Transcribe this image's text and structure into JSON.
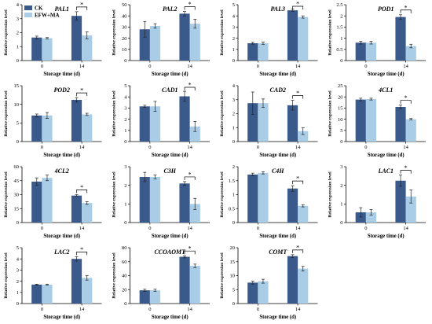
{
  "legend": [
    {
      "label": "CK",
      "color": "#3b5a8c"
    },
    {
      "label": "EFW+MA",
      "color": "#a9cde6"
    }
  ],
  "chart_data": [
    {
      "type": "bar",
      "title": "PAL1",
      "xlabel": "Storage time (d)",
      "ylabel": "Relative expression level",
      "categories": [
        "0",
        "14"
      ],
      "ylim": [
        0,
        4
      ],
      "yticks": [
        0,
        1,
        2,
        3,
        4
      ],
      "series": [
        {
          "name": "CK",
          "values": [
            1.65,
            3.2
          ],
          "errors": [
            0.1,
            0.3
          ]
        },
        {
          "name": "EFW+MA",
          "values": [
            1.6,
            1.8
          ],
          "errors": [
            0.05,
            0.25
          ]
        }
      ],
      "sig": "*"
    },
    {
      "type": "bar",
      "title": "PAL2",
      "xlabel": "Storage time (d)",
      "ylabel": "Relative expression level",
      "categories": [
        "0",
        "14"
      ],
      "ylim": [
        0,
        50
      ],
      "yticks": [
        0,
        10,
        20,
        30,
        40,
        50
      ],
      "series": [
        {
          "name": "CK",
          "values": [
            28,
            42
          ],
          "errors": [
            7,
            2
          ]
        },
        {
          "name": "EFW+MA",
          "values": [
            31,
            33
          ],
          "errors": [
            2,
            4
          ]
        }
      ],
      "sig": "*"
    },
    {
      "type": "bar",
      "title": "PAL3",
      "xlabel": "Storage time (d)",
      "ylabel": "Relative expression level",
      "categories": [
        "0",
        "14"
      ],
      "ylim": [
        0,
        5
      ],
      "yticks": [
        0,
        1,
        2,
        3,
        4,
        5
      ],
      "series": [
        {
          "name": "CK",
          "values": [
            1.55,
            4.5
          ],
          "errors": [
            0.08,
            0.1
          ]
        },
        {
          "name": "EFW+MA",
          "values": [
            1.55,
            3.9
          ],
          "errors": [
            0.1,
            0.1
          ]
        }
      ],
      "sig": "*"
    },
    {
      "type": "bar",
      "title": "POD1",
      "xlabel": "Storage time (d)",
      "ylabel": "Relative expression level",
      "categories": [
        "0",
        "14"
      ],
      "ylim": [
        0,
        2.5
      ],
      "yticks": [
        0,
        0.5,
        1.0,
        1.5,
        2.0,
        2.5
      ],
      "series": [
        {
          "name": "CK",
          "values": [
            0.8,
            1.95
          ],
          "errors": [
            0.06,
            0.1
          ]
        },
        {
          "name": "EFW+MA",
          "values": [
            0.8,
            0.65
          ],
          "errors": [
            0.06,
            0.08
          ]
        }
      ],
      "sig": "*"
    },
    {
      "type": "bar",
      "title": "POD2",
      "xlabel": "Storage time (d)",
      "ylabel": "Relative expression level",
      "categories": [
        "0",
        "14"
      ],
      "ylim": [
        0,
        15
      ],
      "yticks": [
        0,
        5,
        10,
        15
      ],
      "series": [
        {
          "name": "CK",
          "values": [
            7,
            11.2
          ],
          "errors": [
            0.4,
            0.6
          ]
        },
        {
          "name": "EFW+MA",
          "values": [
            7,
            7.3
          ],
          "errors": [
            0.8,
            0.3
          ]
        }
      ],
      "sig": "*"
    },
    {
      "type": "bar",
      "title": "CAD1",
      "xlabel": "Storage time (d)",
      "ylabel": "Relative expression level",
      "categories": [
        "0",
        "14"
      ],
      "ylim": [
        0,
        5
      ],
      "yticks": [
        0,
        1,
        2,
        3,
        4,
        5
      ],
      "series": [
        {
          "name": "CK",
          "values": [
            3.15,
            4.05
          ],
          "errors": [
            0.1,
            0.45
          ]
        },
        {
          "name": "EFW+MA",
          "values": [
            3.15,
            1.35
          ],
          "errors": [
            0.45,
            0.45
          ]
        }
      ],
      "sig": "*"
    },
    {
      "type": "bar",
      "title": "CAD2",
      "xlabel": "Storage time (d)",
      "ylabel": "Relative expression level",
      "categories": [
        "0",
        "14"
      ],
      "ylim": [
        0,
        4
      ],
      "yticks": [
        0,
        1,
        2,
        3,
        4
      ],
      "series": [
        {
          "name": "CK",
          "values": [
            2.75,
            2.6
          ],
          "errors": [
            0.8,
            0.35
          ]
        },
        {
          "name": "EFW+MA",
          "values": [
            2.75,
            0.75
          ],
          "errors": [
            0.3,
            0.25
          ]
        }
      ],
      "sig": "*"
    },
    {
      "type": "bar",
      "title": "4CL1",
      "xlabel": "Storage time (d)",
      "ylabel": "Relative expression level",
      "categories": [
        "0",
        "14"
      ],
      "ylim": [
        0,
        25
      ],
      "yticks": [
        0,
        5,
        10,
        15,
        20,
        25
      ],
      "series": [
        {
          "name": "CK",
          "values": [
            18.8,
            15.5
          ],
          "errors": [
            0.6,
            0.8
          ]
        },
        {
          "name": "EFW+MA",
          "values": [
            19,
            10
          ],
          "errors": [
            0.4,
            0.3
          ]
        }
      ],
      "sig": "*"
    },
    {
      "type": "bar",
      "title": "4CL2",
      "xlabel": "Storage time (d)",
      "ylabel": "Relative expression level",
      "categories": [
        "0",
        "14"
      ],
      "ylim": [
        0,
        60
      ],
      "yticks": [
        0,
        15,
        30,
        45,
        60
      ],
      "series": [
        {
          "name": "CK",
          "values": [
            44,
            29
          ],
          "errors": [
            4,
            1
          ]
        },
        {
          "name": "EFW+MA",
          "values": [
            48,
            21
          ],
          "errors": [
            3,
            1.5
          ]
        }
      ],
      "sig": "*"
    },
    {
      "type": "bar",
      "title": "C3H",
      "xlabel": "Storage time (d)",
      "ylabel": "Relative expression level",
      "categories": [
        "0",
        "14"
      ],
      "ylim": [
        0,
        3
      ],
      "yticks": [
        0,
        1,
        2,
        3
      ],
      "series": [
        {
          "name": "CK",
          "values": [
            2.45,
            2.1
          ],
          "errors": [
            0.25,
            0.1
          ]
        },
        {
          "name": "EFW+MA",
          "values": [
            2.45,
            1.0
          ],
          "errors": [
            0.1,
            0.3
          ]
        }
      ],
      "sig": "*"
    },
    {
      "type": "bar",
      "title": "C4H",
      "xlabel": "Storage time (d)",
      "ylabel": "Relative expression level",
      "categories": [
        "0",
        "14"
      ],
      "ylim": [
        0,
        2.0
      ],
      "yticks": [
        0,
        0.5,
        1.0,
        1.5,
        2.0
      ],
      "series": [
        {
          "name": "CK",
          "values": [
            1.72,
            1.22
          ],
          "errors": [
            0.05,
            0.1
          ]
        },
        {
          "name": "EFW+MA",
          "values": [
            1.78,
            0.6
          ],
          "errors": [
            0.04,
            0.04
          ]
        }
      ],
      "sig": "*"
    },
    {
      "type": "bar",
      "title": "LAC1",
      "xlabel": "Storage time (d)",
      "ylabel": "Relative expression level",
      "categories": [
        "0",
        "14"
      ],
      "ylim": [
        0,
        3
      ],
      "yticks": [
        0,
        1,
        2,
        3
      ],
      "series": [
        {
          "name": "CK",
          "values": [
            0.55,
            2.25
          ],
          "errors": [
            0.25,
            0.3
          ]
        },
        {
          "name": "EFW+MA",
          "values": [
            0.55,
            1.4
          ],
          "errors": [
            0.15,
            0.35
          ]
        }
      ],
      "sig": "*"
    },
    {
      "type": "bar",
      "title": "LAC2",
      "xlabel": "Storage time (d)",
      "ylabel": "Relative expression level",
      "categories": [
        "0",
        "14"
      ],
      "ylim": [
        0,
        5
      ],
      "yticks": [
        0,
        1,
        2,
        3,
        4,
        5
      ],
      "series": [
        {
          "name": "CK",
          "values": [
            1.7,
            4.0
          ],
          "errors": [
            0.04,
            0.2
          ]
        },
        {
          "name": "EFW+MA",
          "values": [
            1.7,
            2.3
          ],
          "errors": [
            0.04,
            0.2
          ]
        }
      ],
      "sig": "*"
    },
    {
      "type": "bar",
      "title": "CCOAOMT",
      "xlabel": "Storage time (d)",
      "ylabel": "Relative expression level",
      "categories": [
        "0",
        "14"
      ],
      "ylim": [
        0,
        80
      ],
      "yticks": [
        0,
        20,
        40,
        60,
        80
      ],
      "series": [
        {
          "name": "CK",
          "values": [
            19,
            67
          ],
          "errors": [
            1.5,
            1.5
          ]
        },
        {
          "name": "EFW+MA",
          "values": [
            19,
            54
          ],
          "errors": [
            1.5,
            2.5
          ]
        }
      ],
      "sig": "*"
    },
    {
      "type": "bar",
      "title": "COMT",
      "xlabel": "Storage time (d)",
      "ylabel": "Relative expression level",
      "categories": [
        "0",
        "14"
      ],
      "ylim": [
        0,
        20
      ],
      "yticks": [
        0,
        5,
        10,
        15,
        20
      ],
      "series": [
        {
          "name": "CK",
          "values": [
            7.5,
            17
          ],
          "errors": [
            0.5,
            0.5
          ]
        },
        {
          "name": "EFW+MA",
          "values": [
            8,
            12.5
          ],
          "errors": [
            0.7,
            0.8
          ]
        }
      ],
      "sig": "*"
    }
  ]
}
